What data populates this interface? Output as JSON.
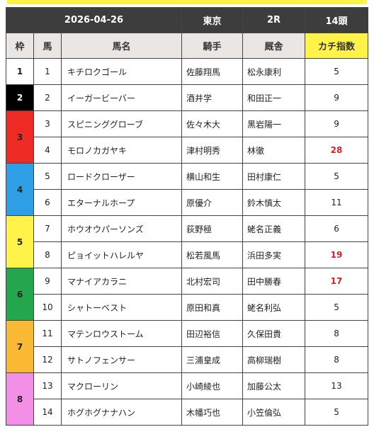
{
  "race": {
    "date": "2026-04-26",
    "venue": "東京",
    "race_no": "2R",
    "count": "14頭"
  },
  "columns": {
    "waku": "枠",
    "uma": "馬",
    "name": "馬名",
    "jockey": "騎手",
    "trainer": "厩舎",
    "score": "カチ指数"
  },
  "colors": {
    "header_bg": "#3d3d3d",
    "score_header": "#fff34a",
    "high_score": "#d2232a"
  },
  "waku_groups": [
    {
      "label": "1",
      "color": "#ffffff",
      "text": "#222222"
    },
    {
      "label": "2",
      "color": "#000000",
      "text": "#ffffff"
    },
    {
      "label": "3",
      "color": "#ee2a24",
      "text": "#222222"
    },
    {
      "label": "4",
      "color": "#2e9fe6",
      "text": "#222222"
    },
    {
      "label": "5",
      "color": "#fff34a",
      "text": "#222222"
    },
    {
      "label": "6",
      "color": "#23a64d",
      "text": "#222222"
    },
    {
      "label": "7",
      "color": "#f9b934",
      "text": "#222222"
    },
    {
      "label": "8",
      "color": "#f48fe8",
      "text": "#222222"
    }
  ],
  "horses": [
    {
      "uma": "1",
      "name": "キチロクゴール",
      "jockey": "佐藤翔馬",
      "trainer": "松永康利",
      "score": "5",
      "highlight": false
    },
    {
      "uma": "2",
      "name": "イーガービーバー",
      "jockey": "酒井学",
      "trainer": "和田正一",
      "score": "9",
      "highlight": false
    },
    {
      "uma": "3",
      "name": "スピニンググローブ",
      "jockey": "佐々木大",
      "trainer": "黒岩陽一",
      "score": "9",
      "highlight": false
    },
    {
      "uma": "4",
      "name": "モロノカガヤキ",
      "jockey": "津村明秀",
      "trainer": "林徹",
      "score": "28",
      "highlight": true
    },
    {
      "uma": "5",
      "name": "ロードクローザー",
      "jockey": "横山和生",
      "trainer": "田村康仁",
      "score": "5",
      "highlight": false
    },
    {
      "uma": "6",
      "name": "エターナルホープ",
      "jockey": "原優介",
      "trainer": "鈴木慎太",
      "score": "11",
      "highlight": false
    },
    {
      "uma": "7",
      "name": "ホウオウパーソンズ",
      "jockey": "荻野極",
      "trainer": "蛯名正義",
      "score": "6",
      "highlight": false
    },
    {
      "uma": "8",
      "name": "ピョイットハレルヤ",
      "jockey": "松若風馬",
      "trainer": "浜田多実",
      "score": "19",
      "highlight": true
    },
    {
      "uma": "9",
      "name": "マナイアカラニ",
      "jockey": "北村宏司",
      "trainer": "田中勝春",
      "score": "17",
      "highlight": true
    },
    {
      "uma": "10",
      "name": "シャトーベスト",
      "jockey": "原田和真",
      "trainer": "蛯名利弘",
      "score": "5",
      "highlight": false
    },
    {
      "uma": "11",
      "name": "マテンロウストーム",
      "jockey": "田辺裕信",
      "trainer": "久保田貴",
      "score": "8",
      "highlight": false
    },
    {
      "uma": "12",
      "name": "サトノフェンサー",
      "jockey": "三浦皇成",
      "trainer": "高柳瑞樹",
      "score": "8",
      "highlight": false
    },
    {
      "uma": "13",
      "name": "マクローリン",
      "jockey": "小崎綾也",
      "trainer": "加藤公太",
      "score": "13",
      "highlight": false
    },
    {
      "uma": "14",
      "name": "ホグホグナナハン",
      "jockey": "木幡巧也",
      "trainer": "小笠倫弘",
      "score": "5",
      "highlight": false
    }
  ]
}
